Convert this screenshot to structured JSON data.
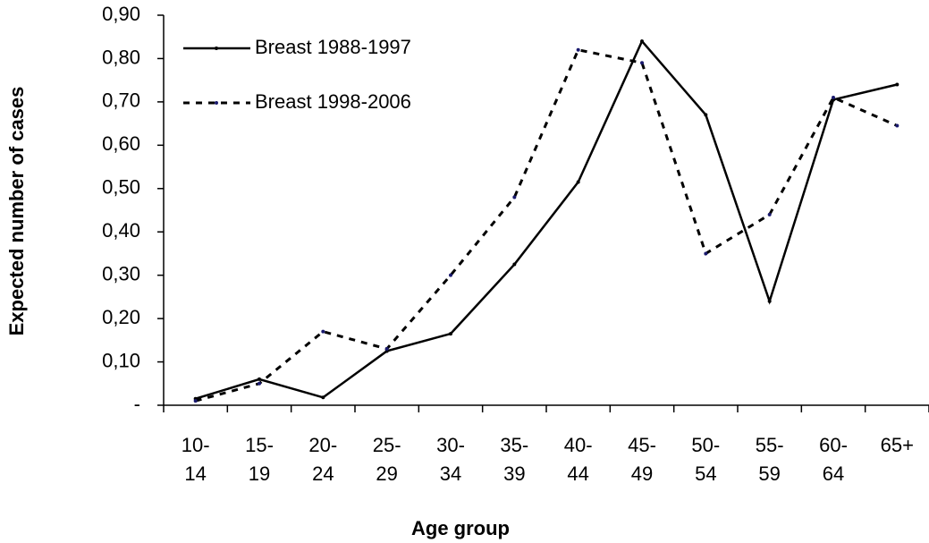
{
  "chart_data": {
    "type": "line",
    "x_label": "Age group",
    "y_label": "Expected number of cases",
    "categories": [
      "10- 14",
      "15- 19",
      "20- 24",
      "25- 29",
      "30- 34",
      "35- 39",
      "40- 44",
      "45- 49",
      "50- 54",
      "55- 59",
      "60- 64",
      "65+"
    ],
    "series": [
      {
        "name": "Breast 1988-1997",
        "color": "#000000",
        "dash": false,
        "values": [
          0.015,
          0.06,
          0.018,
          0.125,
          0.165,
          0.325,
          0.515,
          0.84,
          0.67,
          0.24,
          0.705,
          0.74
        ]
      },
      {
        "name": "Breast 1998-2006",
        "color": "#000000",
        "dash": true,
        "values": [
          0.01,
          0.05,
          0.17,
          0.13,
          0.3,
          0.48,
          0.82,
          0.79,
          0.35,
          0.44,
          0.71,
          0.645
        ]
      }
    ],
    "marker_color": "#1a1a6e",
    "ylim": [
      0,
      0.9
    ],
    "yticks": [
      {
        "value": 0,
        "label": "-"
      },
      {
        "value": 0.1,
        "label": "0,10"
      },
      {
        "value": 0.2,
        "label": "0,20"
      },
      {
        "value": 0.3,
        "label": "0,30"
      },
      {
        "value": 0.4,
        "label": "0,40"
      },
      {
        "value": 0.5,
        "label": "0,50"
      },
      {
        "value": 0.6,
        "label": "0,60"
      },
      {
        "value": 0.7,
        "label": "0,70"
      },
      {
        "value": 0.8,
        "label": "0,80"
      },
      {
        "value": 0.9,
        "label": "0,90"
      }
    ],
    "legend": "upper left"
  }
}
